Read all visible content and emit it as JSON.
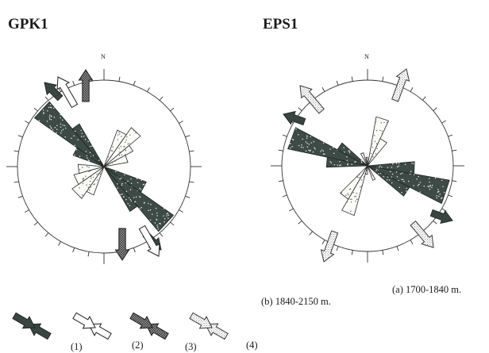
{
  "panels": [
    {
      "title": "GPK1",
      "north_label": "N",
      "caption": ""
    },
    {
      "title": "EPS1",
      "north_label": "N",
      "caption": "(a) 1700-1840 m."
    }
  ],
  "lower_caption": "(b) 1840-2150 m.",
  "legend": [
    {
      "label": "(1)"
    },
    {
      "label": "(2)"
    },
    {
      "label": "(3)"
    },
    {
      "label": "(4)"
    }
  ]
}
